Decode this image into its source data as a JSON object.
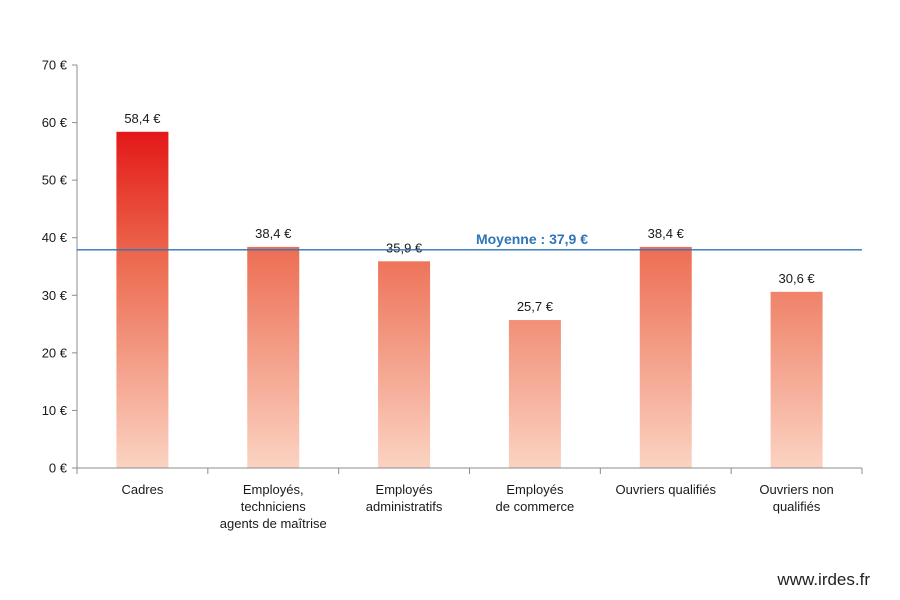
{
  "chart_data": {
    "type": "bar",
    "categories": [
      [
        "Cadres"
      ],
      [
        "Employés,",
        "techniciens",
        "agents de maîtrise"
      ],
      [
        "Employés",
        "administratifs"
      ],
      [
        "Employés",
        "de commerce"
      ],
      [
        "Ouvriers qualifiés"
      ],
      [
        "Ouvriers non",
        "qualifiés"
      ]
    ],
    "values": [
      58.4,
      38.4,
      35.9,
      25.7,
      38.4,
      30.6
    ],
    "value_labels": [
      "58,4 €",
      "38,4 €",
      "35,9 €",
      "25,7 €",
      "38,4 €",
      "30,6 €"
    ],
    "ylim": [
      0,
      70
    ],
    "yticks": [
      0,
      10,
      20,
      30,
      40,
      50,
      60,
      70
    ],
    "ytick_labels": [
      "0 €",
      "10 €",
      "20 €",
      "30 €",
      "40 €",
      "50 €",
      "60 €",
      "70 €"
    ],
    "average": {
      "value": 37.9,
      "label": "Moyenne : 37,9 €",
      "color": "#2e75b6"
    },
    "bar_colors": {
      "top_dark": "#e31818",
      "mid": "#ec6a4f",
      "bottom_light": "#fbd3c2"
    },
    "grid": false
  },
  "source": "www.irdes.fr"
}
